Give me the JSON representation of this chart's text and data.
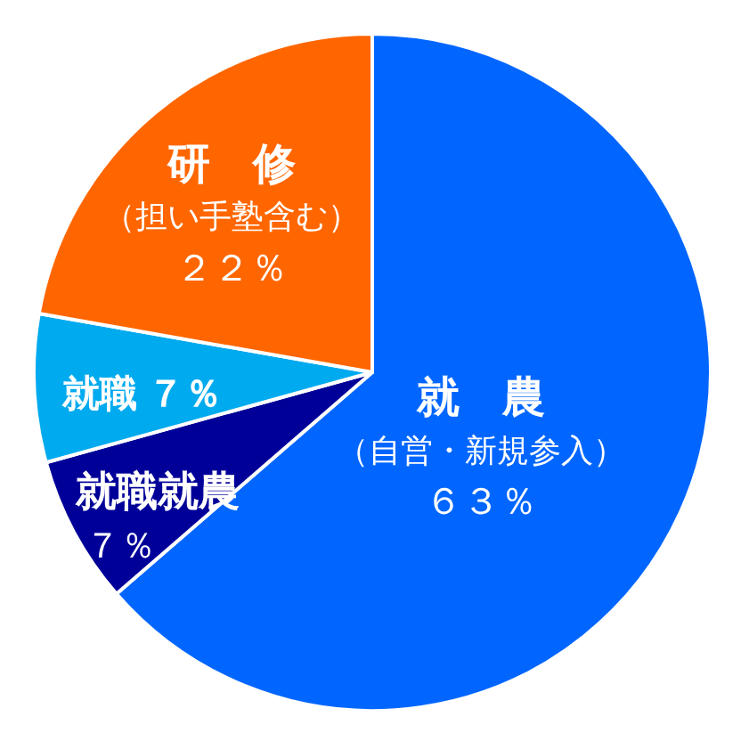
{
  "chart_data": {
    "type": "pie",
    "categories": [
      "就　農",
      "就職就農",
      "就職",
      "研　修"
    ],
    "values": [
      63,
      7,
      7,
      22
    ],
    "colors": [
      "#0066ff",
      "#000099",
      "#00aaee",
      "#ff6600"
    ],
    "value_labels": [
      "６３％",
      "７％",
      "７％",
      "２２％"
    ],
    "annotations": [
      "（自営・新規参入）",
      "（担い手塾含む）"
    ]
  }
}
